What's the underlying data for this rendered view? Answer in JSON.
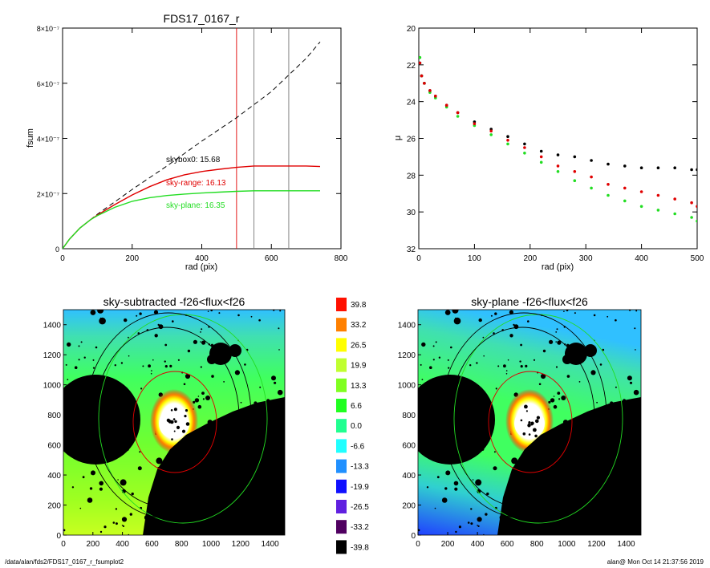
{
  "footer": {
    "path": "/data/alan/fds2/FDS17_0167_r_fsumplot2",
    "stamp": "alan@  Mon Oct 14 21:37:56 2019"
  },
  "colors": {
    "black": "#000000",
    "red": "#e00000",
    "green": "#22dd22",
    "dashed": "#000000",
    "grey_line": "#777777"
  },
  "chart_data": [
    {
      "type": "line",
      "title": "FDS17_0167_r",
      "xlabel": "rad (pix)",
      "ylabel": "fsum",
      "xlim": [
        0,
        800
      ],
      "ylim": [
        0,
        8e-07
      ],
      "x_ticks": [
        "0",
        "200",
        "400",
        "600",
        "800"
      ],
      "y_ticks": [
        "0",
        "2×10⁻⁷",
        "4×10⁻⁷",
        "6×10⁻⁷",
        "8×10⁻⁷"
      ],
      "annotations": [
        {
          "text": "skybox0: 15.68",
          "color": "#000000"
        },
        {
          "text": "sky-range: 16.13",
          "color": "#e00000"
        },
        {
          "text": "sky-plane: 16.35",
          "color": "#22dd22"
        }
      ],
      "vertical_lines": [
        {
          "x": 500,
          "color": "#e00000"
        },
        {
          "x": 550,
          "color": "#777777"
        },
        {
          "x": 650,
          "color": "#777777"
        }
      ],
      "series": [
        {
          "style": "dashed",
          "color": "#000000",
          "x": [
            0,
            20,
            50,
            80,
            100,
            150,
            200,
            300,
            400,
            500,
            600,
            700,
            740
          ],
          "y": [
            0,
            3.5e-08,
            7.5e-08,
            1.05e-07,
            1.25e-07,
            1.7e-07,
            2.15e-07,
            3e-07,
            3.9e-07,
            4.75e-07,
            5.7e-07,
            6.9e-07,
            7.5e-07
          ]
        },
        {
          "style": "solid",
          "color": "#e00000",
          "x": [
            0,
            20,
            50,
            80,
            100,
            150,
            200,
            250,
            300,
            350,
            400,
            450,
            500,
            550,
            600,
            650,
            700,
            740
          ],
          "y": [
            0,
            3.5e-08,
            7.5e-08,
            1.05e-07,
            1.22e-07,
            1.6e-07,
            1.95e-07,
            2.25e-07,
            2.5e-07,
            2.68e-07,
            2.8e-07,
            2.88e-07,
            2.95e-07,
            3e-07,
            3e-07,
            3e-07,
            3e-07,
            2.98e-07
          ]
        },
        {
          "style": "solid",
          "color": "#22dd22",
          "x": [
            0,
            20,
            50,
            80,
            100,
            150,
            200,
            250,
            300,
            350,
            400,
            450,
            500,
            550,
            600,
            650,
            700,
            740
          ],
          "y": [
            0,
            3.5e-08,
            7.5e-08,
            1.05e-07,
            1.2e-07,
            1.5e-07,
            1.72e-07,
            1.85e-07,
            1.93e-07,
            1.98e-07,
            2.02e-07,
            2.05e-07,
            2.08e-07,
            2.1e-07,
            2.1e-07,
            2.1e-07,
            2.1e-07,
            2.1e-07
          ]
        }
      ]
    },
    {
      "type": "scatter",
      "title": "",
      "xlabel": "rad (pix)",
      "ylabel": "μ",
      "xlim": [
        0,
        500
      ],
      "ylim": [
        32,
        20
      ],
      "x_ticks": [
        "0",
        "100",
        "200",
        "300",
        "400",
        "500"
      ],
      "y_ticks": [
        "20",
        "22",
        "24",
        "26",
        "28",
        "30",
        "32"
      ],
      "series": [
        {
          "color": "#000000",
          "x": [
            2,
            5,
            10,
            20,
            30,
            50,
            70,
            100,
            130,
            160,
            190,
            220,
            250,
            280,
            310,
            340,
            370,
            400,
            430,
            460,
            490,
            500
          ],
          "y": [
            21.9,
            22.6,
            23.0,
            23.4,
            23.7,
            24.2,
            24.6,
            25.1,
            25.5,
            25.9,
            26.3,
            26.7,
            26.9,
            27.0,
            27.2,
            27.4,
            27.5,
            27.6,
            27.6,
            27.6,
            27.7,
            27.7
          ]
        },
        {
          "color": "#e00000",
          "x": [
            2,
            5,
            10,
            20,
            30,
            50,
            70,
            100,
            130,
            160,
            190,
            220,
            250,
            280,
            310,
            340,
            370,
            400,
            430,
            460,
            490,
            500
          ],
          "y": [
            21.9,
            22.6,
            23.0,
            23.4,
            23.7,
            24.2,
            24.6,
            25.2,
            25.6,
            26.1,
            26.5,
            27.0,
            27.5,
            27.8,
            28.1,
            28.5,
            28.7,
            28.9,
            29.1,
            29.3,
            29.5,
            29.7
          ]
        },
        {
          "color": "#22dd22",
          "x": [
            2,
            5,
            10,
            20,
            30,
            50,
            70,
            100,
            130,
            160,
            190,
            220,
            250,
            280,
            310,
            340,
            370,
            400,
            430,
            460,
            490,
            500
          ],
          "y": [
            21.6,
            22.6,
            23.0,
            23.5,
            23.8,
            24.3,
            24.8,
            25.3,
            25.8,
            26.3,
            26.8,
            27.3,
            27.8,
            28.3,
            28.7,
            29.1,
            29.4,
            29.7,
            29.9,
            30.1,
            30.3,
            30.5
          ]
        }
      ]
    },
    {
      "type": "heatmap",
      "title": "sky-subtracted -f26<flux<f26",
      "xlim": [
        0,
        1500
      ],
      "ylim": [
        0,
        1500
      ],
      "x_ticks": [
        "0",
        "200",
        "400",
        "600",
        "800",
        "1000",
        "1200",
        "1400"
      ],
      "y_ticks": [
        "0",
        "200",
        "400",
        "600",
        "800",
        "1000",
        "1200",
        "1400"
      ]
    },
    {
      "type": "heatmap",
      "title": "sky-plane -f26<flux<f26",
      "xlim": [
        0,
        1500
      ],
      "ylim": [
        0,
        1500
      ],
      "x_ticks": [
        "0",
        "200",
        "400",
        "600",
        "800",
        "1000",
        "1200",
        "1400"
      ],
      "y_ticks": [
        "0",
        "200",
        "400",
        "600",
        "800",
        "1000",
        "1200",
        "1400"
      ]
    }
  ],
  "colorbar": {
    "labels": [
      "39.8",
      "33.2",
      "26.5",
      "19.9",
      "13.3",
      "6.6",
      "0.0",
      "-6.6",
      "-13.3",
      "-19.9",
      "-26.5",
      "-33.2",
      "-39.8"
    ],
    "colors": [
      "#ff1000",
      "#ff8000",
      "#ffff00",
      "#c0ff30",
      "#80ff20",
      "#20ff20",
      "#20ff90",
      "#20ffff",
      "#2090ff",
      "#1010ff",
      "#6020e0",
      "#500060",
      "#000000"
    ]
  }
}
